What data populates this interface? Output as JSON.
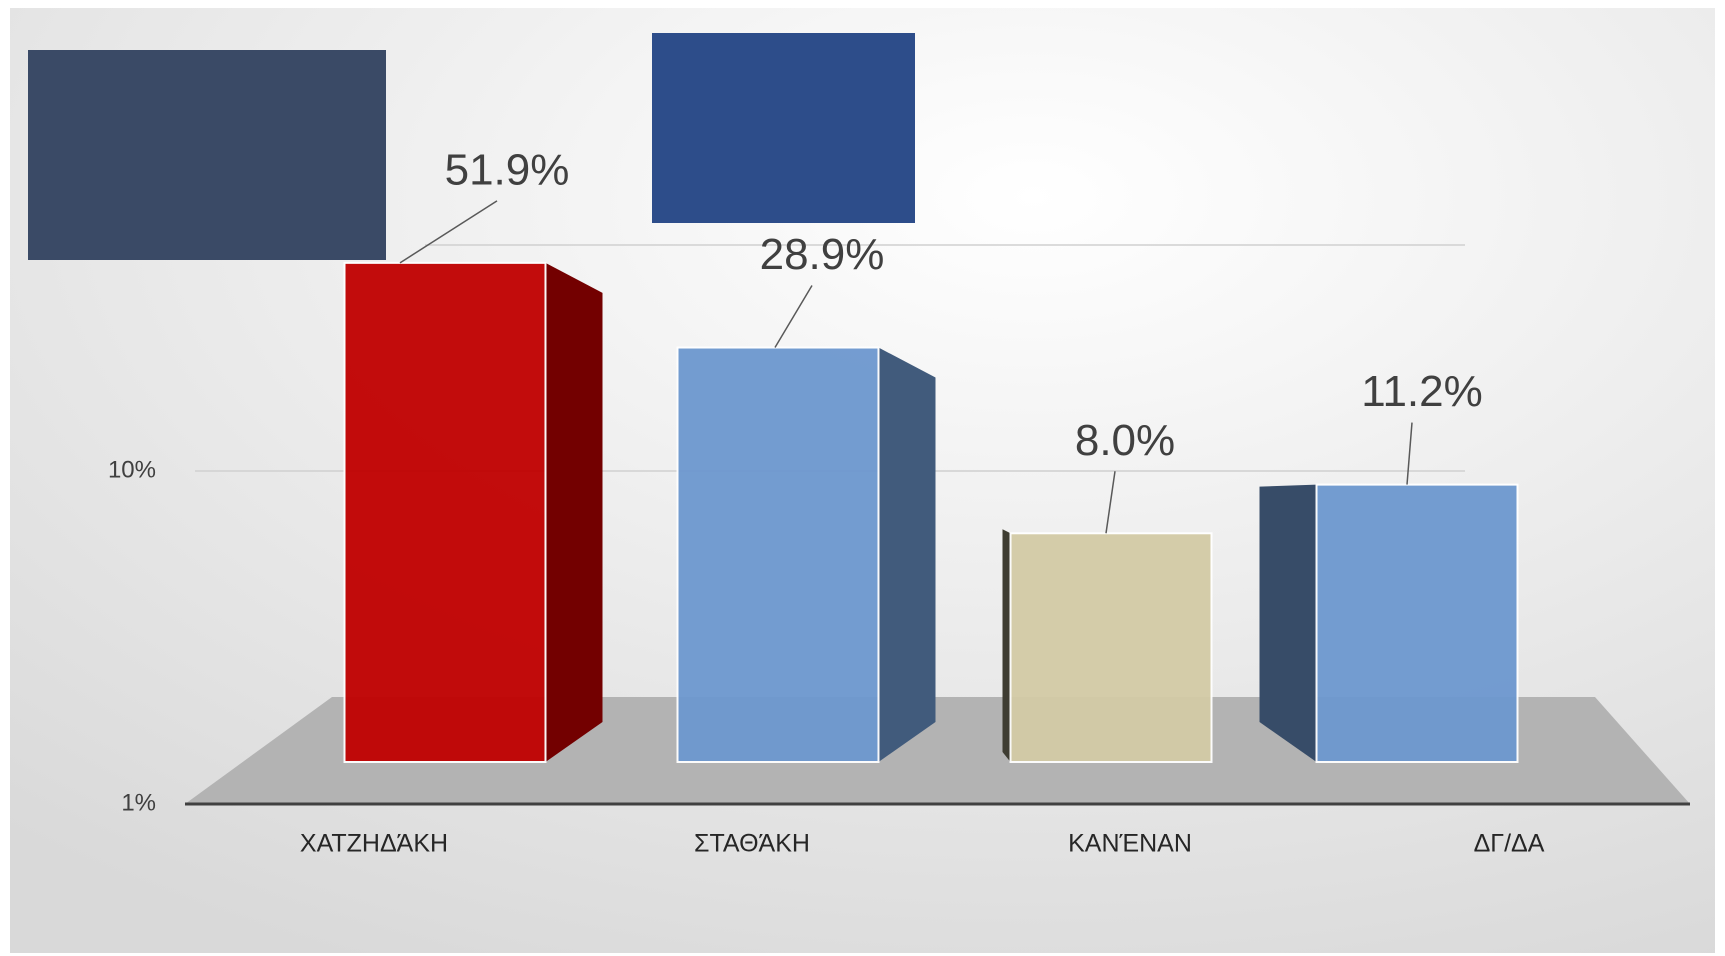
{
  "chart_data": {
    "type": "bar",
    "categories": [
      "ΧΑΤΖΗΔΆΚΗ",
      "ΣΤΑΘΆΚΗ",
      "ΚΑΝΈΝΑΝ",
      "ΔΓ/ΔΑ"
    ],
    "values": [
      51.9,
      28.9,
      8.0,
      11.2
    ],
    "value_labels": [
      "51.9%",
      "28.9%",
      "8.0%",
      "11.2%"
    ],
    "colors": [
      "#c00000",
      "#6d98cf",
      "#d3cba6",
      "#6d98cf"
    ],
    "ylim": [
      1,
      100
    ],
    "yticks": [
      {
        "value": 1,
        "label": "1%"
      },
      {
        "value": 10,
        "label": "10%"
      }
    ],
    "log_scale": true,
    "grid": true
  }
}
